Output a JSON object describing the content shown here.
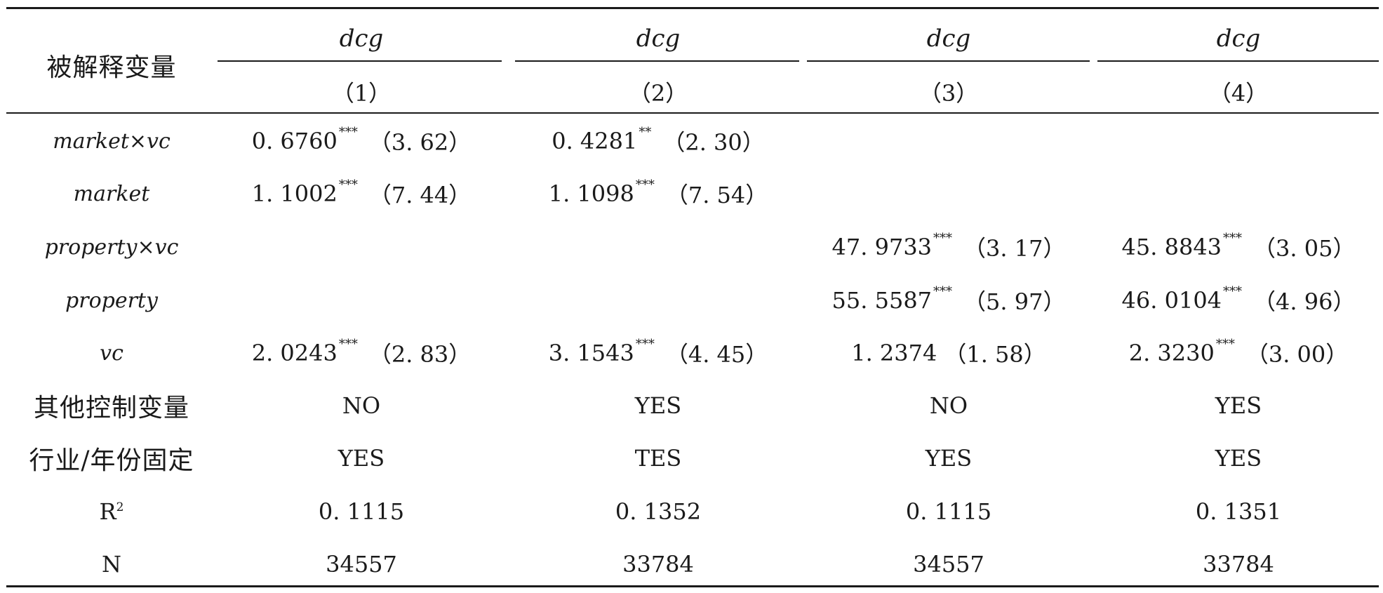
{
  "header": {
    "dep_var_label": "被解释变量",
    "columns": [
      {
        "dep": "dcg",
        "num": "（1）"
      },
      {
        "dep": "dcg",
        "num": "（2）"
      },
      {
        "dep": "dcg",
        "num": "（3）"
      },
      {
        "dep": "dcg",
        "num": "（4）"
      }
    ]
  },
  "rows": [
    {
      "label": "market×vc",
      "cells": [
        {
          "coef": "0. 6760",
          "stars": "***",
          "t": "（3. 62）"
        },
        {
          "coef": "0. 4281",
          "stars": "**",
          "t": "（2. 30）"
        },
        {
          "coef": "",
          "stars": "",
          "t": ""
        },
        {
          "coef": "",
          "stars": "",
          "t": ""
        }
      ]
    },
    {
      "label": "market",
      "cells": [
        {
          "coef": "1. 1002",
          "stars": "***",
          "t": "（7. 44）"
        },
        {
          "coef": "1. 1098",
          "stars": "***",
          "t": "（7. 54）"
        },
        {
          "coef": "",
          "stars": "",
          "t": ""
        },
        {
          "coef": "",
          "stars": "",
          "t": ""
        }
      ]
    },
    {
      "label": "property×vc",
      "cells": [
        {
          "coef": "",
          "stars": "",
          "t": ""
        },
        {
          "coef": "",
          "stars": "",
          "t": ""
        },
        {
          "coef": "47. 9733",
          "stars": "***",
          "t": "（3. 17）"
        },
        {
          "coef": "45. 8843",
          "stars": "***",
          "t": "（3. 05）"
        }
      ]
    },
    {
      "label": "property",
      "cells": [
        {
          "coef": "",
          "stars": "",
          "t": ""
        },
        {
          "coef": "",
          "stars": "",
          "t": ""
        },
        {
          "coef": "55. 5587",
          "stars": "***",
          "t": "（5. 97）"
        },
        {
          "coef": "46. 0104",
          "stars": "***",
          "t": "（4. 96）"
        }
      ]
    },
    {
      "label": "vc",
      "cells": [
        {
          "coef": "2. 0243",
          "stars": "***",
          "t": "（2. 83）"
        },
        {
          "coef": "3. 1543",
          "stars": "***",
          "t": "（4. 45）"
        },
        {
          "coef": "1. 2374",
          "stars": "",
          "t": "（1. 58）"
        },
        {
          "coef": "2. 3230",
          "stars": "***",
          "t": "（3. 00）"
        }
      ]
    }
  ],
  "controls": {
    "label": "其他控制变量",
    "values": [
      "NO",
      "YES",
      "NO",
      "YES"
    ]
  },
  "fixed_effects": {
    "label": "行业/年份固定",
    "values": [
      "YES",
      "TES",
      "YES",
      "YES"
    ]
  },
  "r2": {
    "label": "R",
    "sup": "2",
    "values": [
      "0. 1115",
      "0. 1352",
      "0. 1115",
      "0. 1351"
    ]
  },
  "n": {
    "label": "N",
    "values": [
      "34557",
      "33784",
      "34557",
      "33784"
    ]
  }
}
